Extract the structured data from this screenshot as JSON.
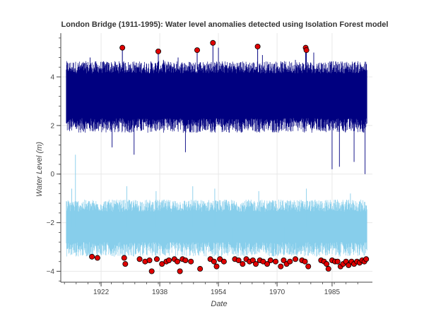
{
  "chart_data": {
    "type": "line",
    "title": "London Bridge (1911-1995): Water level anomalies detected using Isolation Forest model",
    "xlabel": "Date",
    "ylabel": "Water Level (m)",
    "xlim": [
      1911,
      1996
    ],
    "ylim": [
      -4.45,
      5.8
    ],
    "x_ticks": [
      1922,
      1938,
      1954,
      1970,
      1985
    ],
    "y_ticks": [
      -4,
      -2,
      0,
      2,
      4
    ],
    "grid": true,
    "series": [
      {
        "kind": "band",
        "color": "#000080",
        "x_start": 1912.5,
        "x_end": 1994.5,
        "center": 3.2,
        "lower": 2.0,
        "upper": 4.4,
        "extremes": [
          {
            "x": 1919,
            "y": 4.8
          },
          {
            "x": 1928,
            "y": 4.6
          },
          {
            "x": 1931,
            "y": 0.8
          },
          {
            "x": 1939,
            "y": 4.7
          },
          {
            "x": 1943,
            "y": 4.8
          },
          {
            "x": 1949,
            "y": 4.6
          },
          {
            "x": 1954,
            "y": 5.2
          },
          {
            "x": 1960,
            "y": 4.6
          },
          {
            "x": 1966,
            "y": 4.9
          },
          {
            "x": 1975,
            "y": 4.7
          },
          {
            "x": 1980,
            "y": 5.0
          },
          {
            "x": 1985,
            "y": 0.2
          },
          {
            "x": 1987,
            "y": 0.3
          },
          {
            "x": 1991,
            "y": 0.5
          },
          {
            "x": 1994,
            "y": 0.0
          },
          {
            "x": 1945,
            "y": 0.9
          },
          {
            "x": 1925,
            "y": 1.1
          }
        ]
      },
      {
        "kind": "band",
        "color": "#87CEEB",
        "x_start": 1912.5,
        "x_end": 1994.5,
        "center": -2.2,
        "lower": -3.1,
        "upper": -1.3,
        "extremes": [
          {
            "x": 1915,
            "y": 0.8
          },
          {
            "x": 1914,
            "y": -0.6
          },
          {
            "x": 1929,
            "y": -0.5
          },
          {
            "x": 1937,
            "y": -0.7
          },
          {
            "x": 1947,
            "y": -0.5
          },
          {
            "x": 1953,
            "y": -0.6
          },
          {
            "x": 1965,
            "y": -0.7
          },
          {
            "x": 1978,
            "y": -0.6
          },
          {
            "x": 1990,
            "y": -0.8
          },
          {
            "x": 1958,
            "y": -3.3
          },
          {
            "x": 1972,
            "y": -3.3
          }
        ]
      }
    ],
    "anomalies": {
      "color": "#E00000",
      "high": [
        {
          "x": 1927.8,
          "y": 5.2
        },
        {
          "x": 1937.6,
          "y": 5.05
        },
        {
          "x": 1948.2,
          "y": 5.1
        },
        {
          "x": 1952.5,
          "y": 5.4
        },
        {
          "x": 1964.7,
          "y": 5.25
        },
        {
          "x": 1977.8,
          "y": 5.2
        },
        {
          "x": 1978.0,
          "y": 5.1
        }
      ],
      "low": [
        {
          "x": 1919.5,
          "y": -3.4
        },
        {
          "x": 1921.0,
          "y": -3.45
        },
        {
          "x": 1928.3,
          "y": -3.45
        },
        {
          "x": 1928.6,
          "y": -3.7
        },
        {
          "x": 1932.5,
          "y": -3.5
        },
        {
          "x": 1934.0,
          "y": -3.6
        },
        {
          "x": 1935.2,
          "y": -3.55
        },
        {
          "x": 1935.8,
          "y": -4.0
        },
        {
          "x": 1937.2,
          "y": -3.5
        },
        {
          "x": 1938.6,
          "y": -3.7
        },
        {
          "x": 1939.8,
          "y": -3.6
        },
        {
          "x": 1940.5,
          "y": -3.55
        },
        {
          "x": 1942.0,
          "y": -3.5
        },
        {
          "x": 1942.8,
          "y": -3.6
        },
        {
          "x": 1943.5,
          "y": -4.0
        },
        {
          "x": 1944.2,
          "y": -3.5
        },
        {
          "x": 1945.0,
          "y": -3.55
        },
        {
          "x": 1946.5,
          "y": -3.6
        },
        {
          "x": 1949.0,
          "y": -3.9
        },
        {
          "x": 1951.8,
          "y": -3.5
        },
        {
          "x": 1952.8,
          "y": -3.6
        },
        {
          "x": 1953.5,
          "y": -3.8
        },
        {
          "x": 1954.4,
          "y": -3.5
        },
        {
          "x": 1955.5,
          "y": -3.6
        },
        {
          "x": 1958.5,
          "y": -3.5
        },
        {
          "x": 1959.5,
          "y": -3.55
        },
        {
          "x": 1960.6,
          "y": -3.7
        },
        {
          "x": 1961.6,
          "y": -3.5
        },
        {
          "x": 1962.5,
          "y": -3.6
        },
        {
          "x": 1963.4,
          "y": -3.55
        },
        {
          "x": 1964.2,
          "y": -3.7
        },
        {
          "x": 1965.3,
          "y": -3.55
        },
        {
          "x": 1966.2,
          "y": -3.6
        },
        {
          "x": 1967.3,
          "y": -3.7
        },
        {
          "x": 1968.2,
          "y": -3.55
        },
        {
          "x": 1969.6,
          "y": -3.6
        },
        {
          "x": 1971.0,
          "y": -3.8
        },
        {
          "x": 1971.8,
          "y": -3.55
        },
        {
          "x": 1972.6,
          "y": -3.7
        },
        {
          "x": 1973.5,
          "y": -3.6
        },
        {
          "x": 1975.0,
          "y": -3.5
        },
        {
          "x": 1976.8,
          "y": -3.55
        },
        {
          "x": 1977.6,
          "y": -3.6
        },
        {
          "x": 1978.5,
          "y": -3.8
        },
        {
          "x": 1982.0,
          "y": -3.55
        },
        {
          "x": 1982.8,
          "y": -3.6
        },
        {
          "x": 1983.5,
          "y": -3.7
        },
        {
          "x": 1984.0,
          "y": -3.9
        },
        {
          "x": 1985.0,
          "y": -3.55
        },
        {
          "x": 1985.8,
          "y": -3.6
        },
        {
          "x": 1986.5,
          "y": -3.6
        },
        {
          "x": 1987.3,
          "y": -3.8
        },
        {
          "x": 1988.0,
          "y": -3.7
        },
        {
          "x": 1988.8,
          "y": -3.6
        },
        {
          "x": 1989.5,
          "y": -3.75
        },
        {
          "x": 1990.3,
          "y": -3.6
        },
        {
          "x": 1991.0,
          "y": -3.7
        },
        {
          "x": 1991.8,
          "y": -3.6
        },
        {
          "x": 1992.5,
          "y": -3.65
        },
        {
          "x": 1993.2,
          "y": -3.55
        },
        {
          "x": 1993.8,
          "y": -3.6
        },
        {
          "x": 1994.3,
          "y": -3.5
        }
      ]
    }
  }
}
